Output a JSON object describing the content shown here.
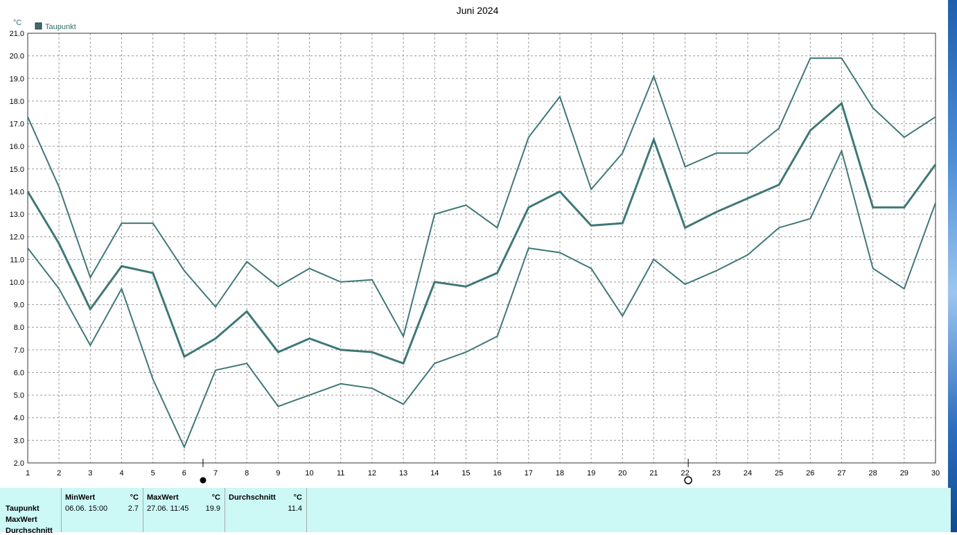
{
  "chart_data": {
    "type": "line",
    "title": "Juni 2024",
    "ylabel": "°C",
    "xlabel": "",
    "x": [
      1,
      2,
      3,
      4,
      5,
      6,
      7,
      8,
      9,
      10,
      11,
      12,
      13,
      14,
      15,
      16,
      17,
      18,
      19,
      20,
      21,
      22,
      23,
      24,
      25,
      26,
      27,
      28,
      29,
      30
    ],
    "xlim": [
      1,
      30
    ],
    "ylim": [
      2.0,
      21.0
    ],
    "yticks": [
      2.0,
      3.0,
      4.0,
      5.0,
      6.0,
      7.0,
      8.0,
      9.0,
      10.0,
      11.0,
      12.0,
      13.0,
      14.0,
      15.0,
      16.0,
      17.0,
      18.0,
      19.0,
      20.0,
      21.0
    ],
    "grid": true,
    "legend_position": "top-left",
    "legend": [
      "Taupunkt"
    ],
    "series": [
      {
        "role": "max",
        "values": [
          17.3,
          14.2,
          10.2,
          12.6,
          12.6,
          10.5,
          8.9,
          10.9,
          9.8,
          10.6,
          10.0,
          10.1,
          7.6,
          13.0,
          13.4,
          12.4,
          16.4,
          18.2,
          14.1,
          15.7,
          19.1,
          15.1,
          15.7,
          15.7,
          16.8,
          19.9,
          19.9,
          17.7,
          16.4,
          17.3
        ]
      },
      {
        "role": "avg",
        "values": [
          14.0,
          11.7,
          8.8,
          10.7,
          10.4,
          6.7,
          7.5,
          8.7,
          6.9,
          7.5,
          7.0,
          6.9,
          6.4,
          10.0,
          9.8,
          10.4,
          13.3,
          14.0,
          12.5,
          12.6,
          16.3,
          12.4,
          13.1,
          13.7,
          14.3,
          16.7,
          17.9,
          13.3,
          13.3,
          15.2
        ]
      },
      {
        "role": "min",
        "values": [
          11.5,
          9.7,
          7.2,
          9.7,
          5.7,
          2.7,
          6.1,
          6.4,
          4.5,
          5.0,
          5.5,
          5.3,
          4.6,
          6.4,
          6.9,
          7.6,
          11.5,
          11.3,
          10.6,
          8.5,
          11.0,
          9.9,
          10.5,
          11.2,
          12.4,
          12.8,
          15.8,
          10.6,
          9.7,
          13.5
        ]
      }
    ],
    "moon_phases": [
      {
        "day": 6.6,
        "phase": "new-moon"
      },
      {
        "day": 22.1,
        "phase": "full-moon"
      }
    ],
    "colors": {
      "line": "#3f7777",
      "grid": "#9a9a9a",
      "legend_swatch": "#3f6b6b"
    }
  },
  "stats": {
    "row_labels": [
      "Taupunkt",
      "MaxWert",
      "Durchschnitt"
    ],
    "min": {
      "header": "MinWert",
      "unit": "°C",
      "when": "06.06.  15:00",
      "value": "2.7"
    },
    "max": {
      "header": "MaxWert",
      "unit": "°C",
      "when": "27.06.  11:45",
      "value": "19.9"
    },
    "avg": {
      "header": "Durchschnitt",
      "unit": "°C",
      "value": "11.4"
    }
  }
}
